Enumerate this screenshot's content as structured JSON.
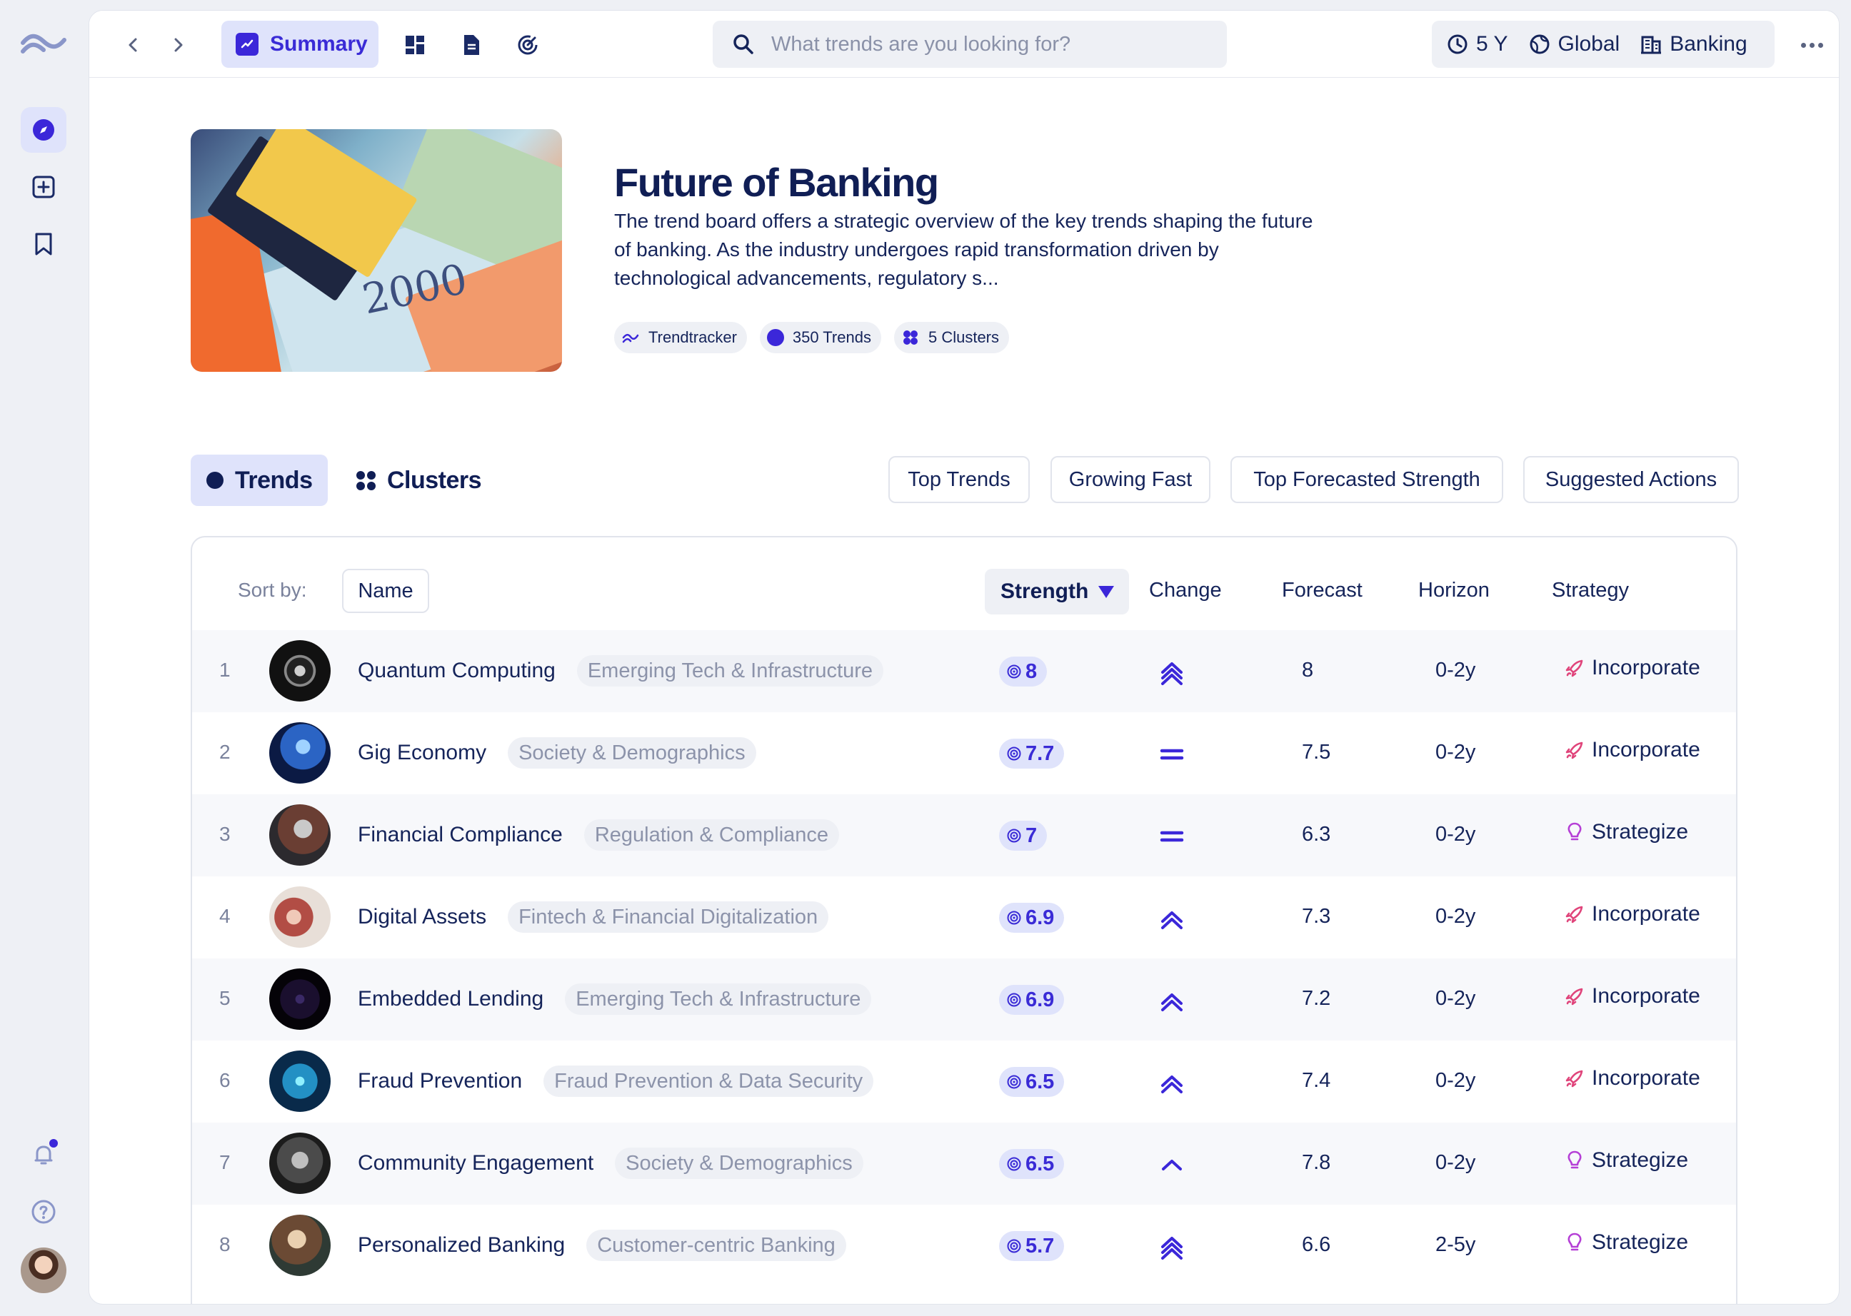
{
  "nav": {
    "back_icon": "chevron-left-icon",
    "forward_icon": "chevron-right-icon"
  },
  "header": {
    "summary_tab_label": "Summary",
    "search_placeholder": "What trends are you looking for?",
    "filters": {
      "timeframe": "5 Y",
      "region": "Global",
      "industry": "Banking"
    }
  },
  "hero": {
    "title": "Future of Banking",
    "description": "The trend board offers a strategic overview of the key trends shaping the future of banking. As the industry undergoes rapid transformation driven by technological advancements, regulatory s...",
    "image_text": "2000",
    "chips": {
      "source": "Trendtracker",
      "trends": "350 Trends",
      "clusters": "5 Clusters"
    }
  },
  "views": {
    "trends": "Trends",
    "clusters": "Clusters"
  },
  "quick_filters": {
    "top_trends": "Top Trends",
    "growing_fast": "Growing Fast",
    "top_forecasted": "Top Forecasted Strength",
    "suggested_actions": "Suggested Actions"
  },
  "table": {
    "sort_label": "Sort by:",
    "sort_name": "Name",
    "columns": {
      "strength": "Strength",
      "change": "Change",
      "forecast": "Forecast",
      "horizon": "Horizon",
      "strategy": "Strategy"
    },
    "rows": [
      {
        "rank": "1",
        "name": "Quantum Computing",
        "cluster": "Emerging Tech & Infrastructure",
        "strength": "8",
        "change": "strong-up",
        "forecast": "8",
        "horizon": "0-2y",
        "strategy": "Incorporate"
      },
      {
        "rank": "2",
        "name": "Gig Economy",
        "cluster": "Society & Demographics",
        "strength": "7.7",
        "change": "flat",
        "forecast": "7.5",
        "horizon": "0-2y",
        "strategy": "Incorporate"
      },
      {
        "rank": "3",
        "name": "Financial Compliance",
        "cluster": "Regulation & Compliance",
        "strength": "7",
        "change": "flat",
        "forecast": "6.3",
        "horizon": "0-2y",
        "strategy": "Strategize"
      },
      {
        "rank": "4",
        "name": "Digital Assets",
        "cluster": "Fintech & Financial Digitalization",
        "strength": "6.9",
        "change": "up",
        "forecast": "7.3",
        "horizon": "0-2y",
        "strategy": "Incorporate"
      },
      {
        "rank": "5",
        "name": "Embedded Lending",
        "cluster": "Emerging Tech & Infrastructure",
        "strength": "6.9",
        "change": "up",
        "forecast": "7.2",
        "horizon": "0-2y",
        "strategy": "Incorporate"
      },
      {
        "rank": "6",
        "name": "Fraud Prevention",
        "cluster": "Fraud Prevention & Data Security",
        "strength": "6.5",
        "change": "up",
        "forecast": "7.4",
        "horizon": "0-2y",
        "strategy": "Incorporate"
      },
      {
        "rank": "7",
        "name": "Community Engagement",
        "cluster": "Society & Demographics",
        "strength": "6.5",
        "change": "slight-up",
        "forecast": "7.8",
        "horizon": "0-2y",
        "strategy": "Strategize"
      },
      {
        "rank": "8",
        "name": "Personalized Banking",
        "cluster": "Customer-centric Banking",
        "strength": "5.7",
        "change": "strong-up",
        "forecast": "6.6",
        "horizon": "2-5y",
        "strategy": "Strategize"
      }
    ]
  },
  "colors": {
    "accent": "#3b27d9",
    "accent_soft": "#dfe3fb",
    "text_primary": "#15245a",
    "strategy_incorporate": "#e0457b",
    "strategy_strategize": "#b53fd6"
  }
}
